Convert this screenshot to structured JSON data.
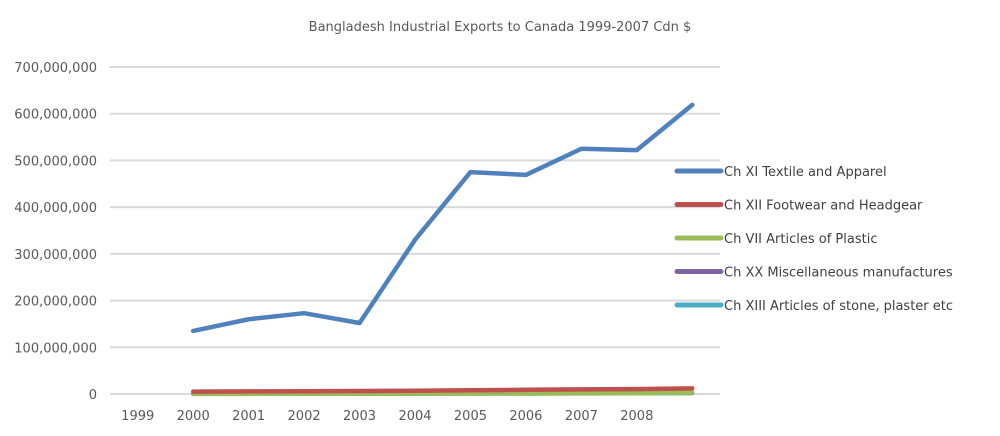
{
  "chart_data": {
    "type": "line",
    "title": "Bangladesh Industrial Exports to Canada 1999-2007 Cdn $",
    "xlabel": "",
    "ylabel": "",
    "categories": [
      "1999",
      "2000",
      "2001",
      "2002",
      "2003",
      "2004",
      "2005",
      "2006",
      "2007",
      "2008",
      ""
    ],
    "y_ticks": [
      "0",
      "100,000,000",
      "200,000,000",
      "300,000,000",
      "400,000,000",
      "500,000,000",
      "600,000,000",
      "700,000,000"
    ],
    "ylim": [
      0,
      700000000
    ],
    "grid": true,
    "legend_position": "right",
    "series": [
      {
        "name": "Ch XI Textile and Apparel",
        "color": "#4F81BD",
        "values": [
          null,
          135000000,
          160000000,
          173000000,
          152000000,
          330000000,
          475000000,
          469000000,
          525000000,
          522000000,
          619000000
        ]
      },
      {
        "name": "Ch XII Footwear and Headgear",
        "color": "#C0504D",
        "values": [
          null,
          5000000,
          5500000,
          6000000,
          6500000,
          7000000,
          8000000,
          9000000,
          10000000,
          10500000,
          12000000
        ]
      },
      {
        "name": "Ch VII Articles of Plastic",
        "color": "#9BBB59",
        "values": [
          null,
          500000,
          600000,
          700000,
          800000,
          1000000,
          1200000,
          1400000,
          1700000,
          2000000,
          3000000
        ]
      },
      {
        "name": "Ch XX Miscellaneous manufactures",
        "color": "#8064A2",
        "values": [
          null,
          1000000,
          1100000,
          1200000,
          1300000,
          1500000,
          1700000,
          1900000,
          2100000,
          2300000,
          2800000
        ]
      },
      {
        "name": "Ch XIII Articles of stone, plaster etc",
        "color": "#4BACC6",
        "values": [
          null,
          300000,
          400000,
          500000,
          600000,
          800000,
          1000000,
          1200000,
          1400000,
          1600000,
          2000000
        ]
      }
    ]
  }
}
